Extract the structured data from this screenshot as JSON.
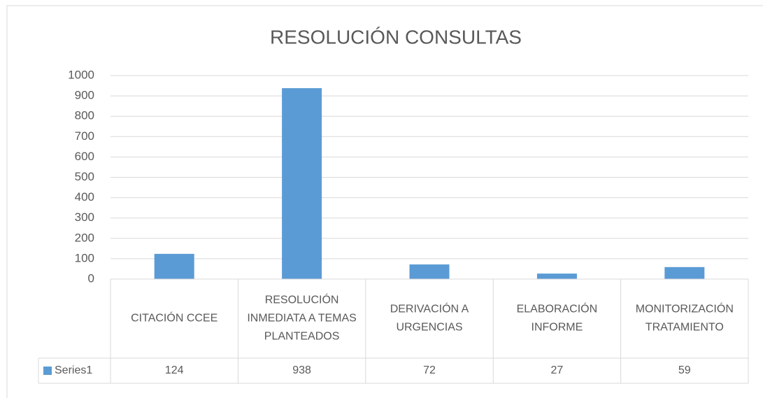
{
  "chart_data": {
    "type": "bar",
    "title": "RESOLUCIÓN CONSULTAS",
    "categories": [
      "CITACIÓN CCEE",
      "RESOLUCIÓN INMEDIATA A TEMAS PLANTEADOS",
      "DERIVACIÓN A URGENCIAS",
      "ELABORACIÓN INFORME",
      "MONITORIZACIÓN TRATAMIENTO"
    ],
    "series": [
      {
        "name": "Series1",
        "color": "#5b9bd5",
        "values": [
          124,
          938,
          72,
          27,
          59
        ]
      }
    ],
    "ylim": [
      0,
      1000
    ],
    "yticks": [
      0,
      100,
      200,
      300,
      400,
      500,
      600,
      700,
      800,
      900,
      1000
    ],
    "grid": true,
    "data_table": true
  }
}
